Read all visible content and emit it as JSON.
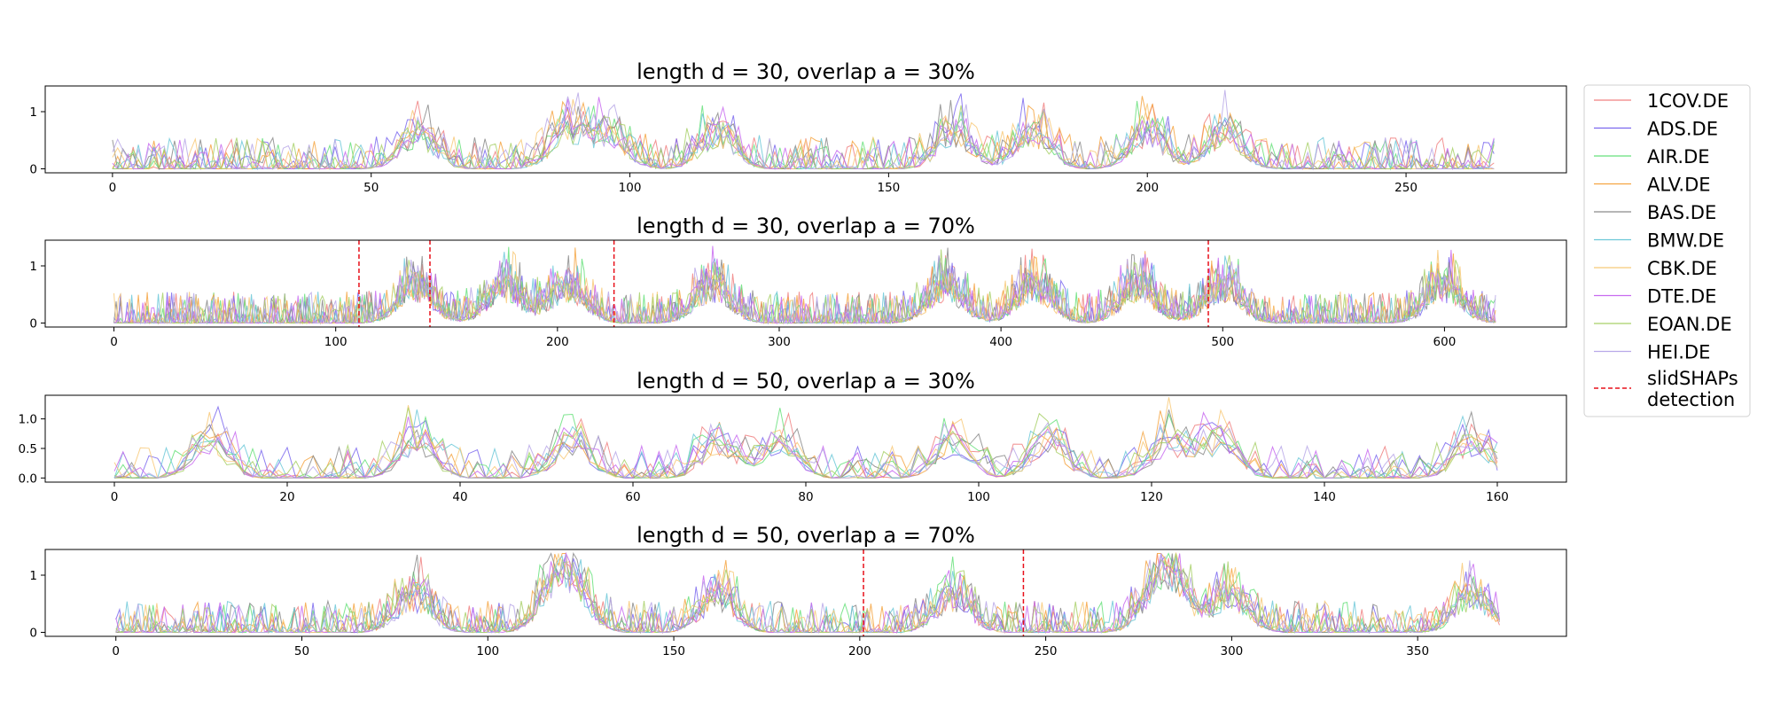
{
  "chart_data": [
    {
      "type": "line",
      "title": "length d = 30, overlap a = 30%",
      "xlim": [
        -13,
        281
      ],
      "ylim": [
        -0.07,
        1.45
      ],
      "xticks": [
        0,
        50,
        100,
        150,
        200,
        250
      ],
      "yticks": [
        0,
        1
      ],
      "x_max": 267,
      "seed": 11,
      "bump_centers": [
        59,
        88,
        96,
        117,
        163,
        178,
        200,
        215
      ],
      "detections": []
    },
    {
      "type": "line",
      "title": "length d = 30, overlap a = 70%",
      "xlim": [
        -31,
        655
      ],
      "ylim": [
        -0.07,
        1.45
      ],
      "xticks": [
        0,
        100,
        200,
        300,
        400,
        500,
        600
      ],
      "yticks": [
        0,
        1
      ],
      "x_max": 623,
      "seed": 23,
      "bump_centers": [
        136,
        176,
        205,
        270,
        375,
        415,
        462,
        500,
        600
      ],
      "detections": [
        110.5,
        142.5,
        225.5,
        493.5
      ]
    },
    {
      "type": "line",
      "title": "length d = 50, overlap a = 30%",
      "xlim": [
        -8,
        168
      ],
      "ylim": [
        -0.07,
        1.4
      ],
      "xticks": [
        0,
        20,
        40,
        60,
        80,
        100,
        120,
        140,
        160
      ],
      "yticks": [
        0.0,
        0.5,
        1.0
      ],
      "ytick_labels": [
        "0.0",
        "0.5",
        "1.0"
      ],
      "x_max": 160,
      "seed": 37,
      "bump_centers": [
        11,
        35,
        53,
        70,
        77,
        97,
        108,
        122,
        128,
        157
      ],
      "detections": []
    },
    {
      "type": "line",
      "title": "length d = 50, overlap a = 70%",
      "xlim": [
        -19,
        390
      ],
      "ylim": [
        -0.07,
        1.45
      ],
      "xticks": [
        0,
        50,
        100,
        150,
        200,
        250,
        300,
        350
      ],
      "yticks": [
        0,
        1
      ],
      "x_max": 372,
      "seed": 51,
      "bump_centers": [
        80,
        118,
        123,
        162,
        225,
        280,
        285,
        300,
        365
      ],
      "detections": [
        201,
        244
      ]
    }
  ],
  "legend": {
    "placement": "right",
    "series": [
      {
        "name": "1COV.DE",
        "color": "#f08080"
      },
      {
        "name": "ADS.DE",
        "color": "#7b68ee"
      },
      {
        "name": "AIR.DE",
        "color": "#66e07a"
      },
      {
        "name": "ALV.DE",
        "color": "#f5a442"
      },
      {
        "name": "BAS.DE",
        "color": "#8a8a8a"
      },
      {
        "name": "BMW.DE",
        "color": "#6cc8d8"
      },
      {
        "name": "CBK.DE",
        "color": "#f8c978"
      },
      {
        "name": "DTE.DE",
        "color": "#c86af0"
      },
      {
        "name": "EOAN.DE",
        "color": "#a8d068"
      },
      {
        "name": "HEI.DE",
        "color": "#b8a8e8"
      }
    ],
    "detection": {
      "label_line1": "slidSHAPs",
      "label_line2": "detection",
      "color": "#e8101a"
    }
  }
}
